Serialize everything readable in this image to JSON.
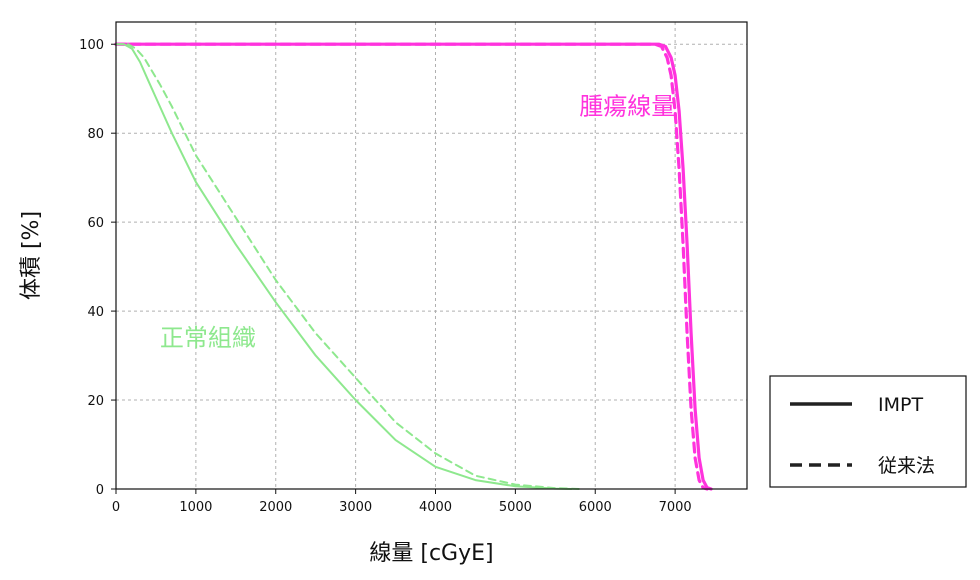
{
  "chart_data": {
    "type": "line",
    "xlabel": "線量 [cGyE]",
    "ylabel": "体積 [%]",
    "xlim": [
      0,
      7900
    ],
    "ylim": [
      0,
      105
    ],
    "xticks": [
      0,
      1000,
      2000,
      3000,
      4000,
      5000,
      6000,
      7000
    ],
    "yticks": [
      0,
      20,
      40,
      60,
      80,
      100
    ],
    "grid": true,
    "legend_position": "bottom-right, outside plot",
    "legend": [
      {
        "label": "IMPT",
        "style": "solid"
      },
      {
        "label": "従来法",
        "style": "dashed"
      }
    ],
    "annotations": [
      {
        "text": "腫瘍線量",
        "x": 5800,
        "y": 86,
        "color": "#ff33dd"
      },
      {
        "text": "正常組織",
        "x": 550,
        "y": 34,
        "color": "#8ee88e"
      }
    ],
    "series": [
      {
        "group": "tumor",
        "style": "solid",
        "color": "#ff33dd",
        "x": [
          0,
          6800,
          6880,
          6950,
          7000,
          7050,
          7100,
          7150,
          7200,
          7250,
          7300,
          7350,
          7400,
          7450
        ],
        "y": [
          100,
          100,
          99.5,
          97,
          93,
          85,
          72,
          55,
          35,
          18,
          7,
          2,
          0.3,
          0
        ]
      },
      {
        "group": "tumor",
        "style": "dashed",
        "color": "#ff33dd",
        "x": [
          0,
          6750,
          6830,
          6900,
          6950,
          7000,
          7050,
          7100,
          7150,
          7200,
          7250,
          7300,
          7350,
          7400
        ],
        "y": [
          100,
          100,
          99.5,
          97,
          93,
          85,
          72,
          55,
          35,
          18,
          7,
          2,
          0.3,
          0
        ]
      },
      {
        "group": "normal",
        "style": "solid",
        "color": "#8ee88e",
        "x": [
          0,
          100,
          200,
          300,
          400,
          500,
          700,
          1000,
          1500,
          2000,
          2500,
          3000,
          3500,
          4000,
          4500,
          5000,
          5500,
          5700
        ],
        "y": [
          100,
          100,
          99,
          96,
          92,
          88,
          80,
          69,
          55,
          42,
          30,
          20,
          11,
          5,
          2,
          0.6,
          0.1,
          0
        ]
      },
      {
        "group": "normal",
        "style": "dashed",
        "color": "#8ee88e",
        "x": [
          0,
          150,
          250,
          350,
          450,
          550,
          700,
          1000,
          1500,
          2000,
          2500,
          3000,
          3500,
          4000,
          4500,
          5000,
          5500,
          5800
        ],
        "y": [
          100,
          100,
          99,
          97,
          94,
          91,
          86,
          75,
          61,
          47,
          35,
          25,
          15,
          8,
          3,
          1,
          0.2,
          0
        ]
      }
    ]
  }
}
